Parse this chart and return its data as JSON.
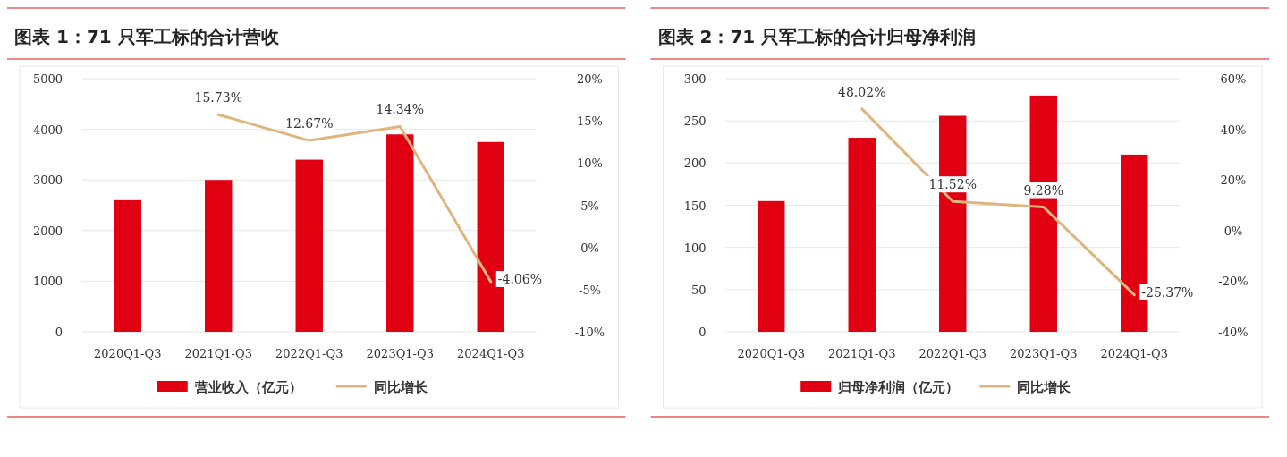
{
  "chart_data": [
    {
      "type": "bar",
      "title": "图表 1：71 只军工标的合计营收",
      "categories": [
        "2020Q1-Q3",
        "2021Q1-Q3",
        "2022Q1-Q3",
        "2023Q1-Q3",
        "2024Q1-Q3"
      ],
      "series": [
        {
          "name": "营业收入（亿元）",
          "color": "#e00012",
          "values": [
            2600,
            3000,
            3400,
            3900,
            3750
          ]
        },
        {
          "name": "同比增长",
          "type": "line",
          "axis": "y2",
          "color": "#dfb57e",
          "values": [
            null,
            15.73,
            12.67,
            14.34,
            -4.06
          ],
          "value_labels": [
            null,
            "15.73%",
            "12.67%",
            "14.34%",
            "-4.06%"
          ]
        }
      ],
      "ylim": [
        0,
        5000
      ],
      "yticks": [
        0,
        1000,
        2000,
        3000,
        4000,
        5000
      ],
      "y2lim": [
        -10,
        20
      ],
      "y2ticks": [
        {
          "value": -10,
          "label": "-10%"
        },
        {
          "value": -5,
          "label": "-5%"
        },
        {
          "value": 0,
          "label": "0%"
        },
        {
          "value": 5,
          "label": "5%"
        },
        {
          "value": 10,
          "label": "10%"
        },
        {
          "value": 15,
          "label": "15%"
        },
        {
          "value": 20,
          "label": "20%"
        }
      ],
      "grid": "y",
      "legend": "bottom"
    },
    {
      "type": "bar",
      "title": "图表 2：71 只军工标的合计归母净利润",
      "categories": [
        "2020Q1-Q3",
        "2021Q1-Q3",
        "2022Q1-Q3",
        "2023Q1-Q3",
        "2024Q1-Q3"
      ],
      "series": [
        {
          "name": "归母净利润（亿元）",
          "color": "#e00012",
          "values": [
            155,
            230,
            256,
            280,
            210
          ]
        },
        {
          "name": "同比增长",
          "type": "line",
          "axis": "y2",
          "color": "#dfb57e",
          "values": [
            null,
            48.02,
            11.52,
            9.28,
            -25.37
          ],
          "value_labels": [
            null,
            "48.02%",
            "11.52%",
            "9.28%",
            "-25.37%"
          ]
        }
      ],
      "ylim": [
        0,
        300
      ],
      "yticks": [
        0,
        50,
        100,
        150,
        200,
        250,
        300
      ],
      "y2lim": [
        -40,
        60
      ],
      "y2ticks": [
        {
          "value": -40,
          "label": "-40%"
        },
        {
          "value": -20,
          "label": "-20%"
        },
        {
          "value": 0,
          "label": "0%"
        },
        {
          "value": 20,
          "label": "20%"
        },
        {
          "value": 40,
          "label": "40%"
        },
        {
          "value": 60,
          "label": "60%"
        }
      ],
      "grid": "y",
      "legend": "bottom"
    }
  ]
}
